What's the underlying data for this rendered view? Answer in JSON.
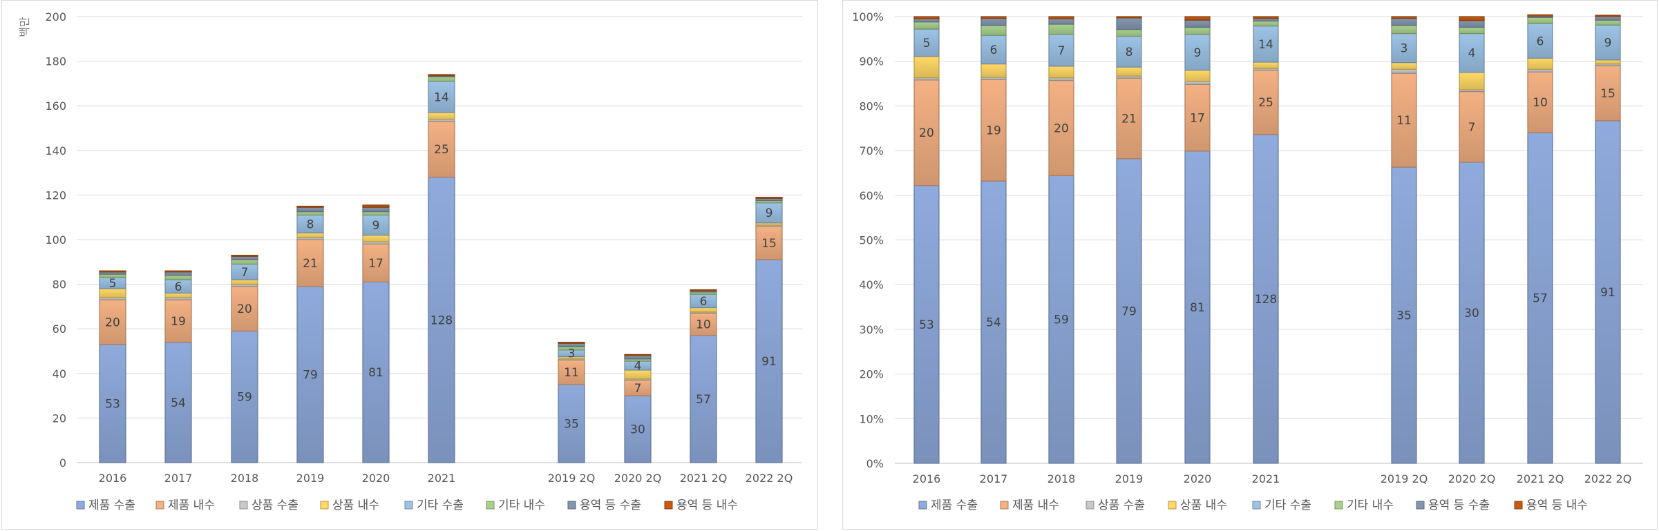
{
  "chart_data": [
    {
      "type": "bar",
      "stacked": true,
      "ylabel": "백만",
      "ylim": [
        0,
        200
      ],
      "yticks": [
        "0",
        "20",
        "40",
        "60",
        "80",
        "100",
        "120",
        "140",
        "160",
        "180",
        "200"
      ],
      "categories": [
        "2016",
        "2017",
        "2018",
        "2019",
        "2020",
        "2021",
        "2019 2Q",
        "2020 2Q",
        "2021 2Q",
        "2022 2Q"
      ],
      "legend_position": "bottom",
      "grid": true,
      "series": [
        {
          "name": "제품 수출",
          "color": "#8faadc",
          "values": [
            53,
            54,
            59,
            79,
            81,
            128,
            35,
            30,
            57,
            91
          ],
          "labels": [
            "53",
            "54",
            "59",
            "79",
            "81",
            "128",
            "35",
            "30",
            "57",
            "91"
          ]
        },
        {
          "name": "제품 내수",
          "color": "#f4b183",
          "values": [
            20,
            19,
            20,
            21,
            17,
            25,
            11,
            7,
            10,
            15
          ],
          "labels": [
            "20",
            "19",
            "20",
            "21",
            "17",
            "25",
            "11",
            "7",
            "10",
            "15"
          ]
        },
        {
          "name": "상품 수출",
          "color": "#c9c9c9",
          "values": [
            1,
            1,
            1,
            1,
            1,
            1,
            0.5,
            0.5,
            0.5,
            0.5
          ],
          "labels": []
        },
        {
          "name": "상품 내수",
          "color": "#ffd966",
          "values": [
            4,
            2,
            2,
            2,
            3,
            3,
            1,
            4,
            2,
            1
          ],
          "labels": []
        },
        {
          "name": "기타 수출",
          "color": "#9dc3e6",
          "values": [
            5,
            6,
            7,
            8,
            9,
            14,
            3,
            4,
            6,
            9
          ],
          "labels": [
            "5",
            "6",
            "7",
            "8",
            "9",
            "14",
            "3",
            "4",
            "6",
            "9"
          ]
        },
        {
          "name": "기타 내수",
          "color": "#a9d18e",
          "values": [
            1.5,
            2,
            2,
            1.5,
            1.5,
            2,
            1.5,
            1,
            1,
            1
          ],
          "labels": []
        },
        {
          "name": "용역 등 수출",
          "color": "#8497b0",
          "values": [
            1,
            1.5,
            1.5,
            2,
            2,
            0.5,
            1.5,
            1.5,
            0.5,
            1
          ],
          "labels": []
        },
        {
          "name": "용역 등 내수",
          "color": "#c55a11",
          "values": [
            0.5,
            0.5,
            0.5,
            0.5,
            1,
            0.5,
            0.5,
            0.5,
            0.5,
            0.5
          ],
          "labels": []
        }
      ]
    },
    {
      "type": "bar",
      "stacked": true,
      "normalized": true,
      "ylim": [
        0,
        100
      ],
      "yticks": [
        "0%",
        "10%",
        "20%",
        "30%",
        "40%",
        "50%",
        "60%",
        "70%",
        "80%",
        "90%",
        "100%"
      ],
      "categories": [
        "2016",
        "2017",
        "2018",
        "2019",
        "2020",
        "2021",
        "2019 2Q",
        "2020 2Q",
        "2021 2Q",
        "2022 2Q"
      ],
      "legend_position": "bottom",
      "grid": true,
      "series": [
        {
          "name": "제품 수출",
          "color": "#8faadc",
          "values": [
            62.2,
            63.2,
            64.4,
            68.2,
            69.9,
            73.6,
            66.3,
            67.4,
            74.0,
            76.7
          ],
          "labels": [
            "53",
            "54",
            "59",
            "79",
            "81",
            "128",
            "35",
            "30",
            "57",
            "91"
          ]
        },
        {
          "name": "제품 내수",
          "color": "#f4b183",
          "values": [
            23.6,
            22.7,
            21.3,
            18.0,
            14.9,
            14.4,
            21.0,
            15.8,
            13.6,
            12.3
          ],
          "labels": [
            "20",
            "19",
            "20",
            "21",
            "17",
            "25",
            "11",
            "7",
            "10",
            "15"
          ]
        },
        {
          "name": "상품 수출",
          "color": "#c9c9c9",
          "values": [
            0.5,
            0.5,
            0.6,
            0.5,
            0.7,
            0.4,
            0.9,
            0.4,
            0.6,
            0.4
          ],
          "labels": []
        },
        {
          "name": "상품 내수",
          "color": "#ffd966",
          "values": [
            4.8,
            3.0,
            2.6,
            2.0,
            2.5,
            1.4,
            1.5,
            3.9,
            2.5,
            0.9
          ],
          "labels": []
        },
        {
          "name": "기타 수출",
          "color": "#9dc3e6",
          "values": [
            6.1,
            6.4,
            7.1,
            6.9,
            8.0,
            8.1,
            6.5,
            8.7,
            7.7,
            7.8
          ],
          "labels": [
            "5",
            "6",
            "7",
            "8",
            "9",
            "14",
            "3",
            "4",
            "6",
            "9"
          ]
        },
        {
          "name": "기타 내수",
          "color": "#a9d18e",
          "values": [
            1.6,
            2.2,
            2.3,
            1.5,
            1.6,
            1.1,
            1.8,
            1.4,
            1.4,
            1.1
          ],
          "labels": []
        },
        {
          "name": "용역 등 수출",
          "color": "#8497b0",
          "values": [
            0.7,
            1.6,
            1.2,
            2.6,
            1.6,
            0.6,
            1.6,
            1.5,
            0.3,
            0.8
          ],
          "labels": []
        },
        {
          "name": "용역 등 내수",
          "color": "#c55a11",
          "values": [
            0.5,
            0.4,
            0.5,
            0.3,
            0.8,
            0.4,
            0.4,
            0.9,
            0.3,
            0.3
          ],
          "labels": []
        }
      ]
    }
  ]
}
